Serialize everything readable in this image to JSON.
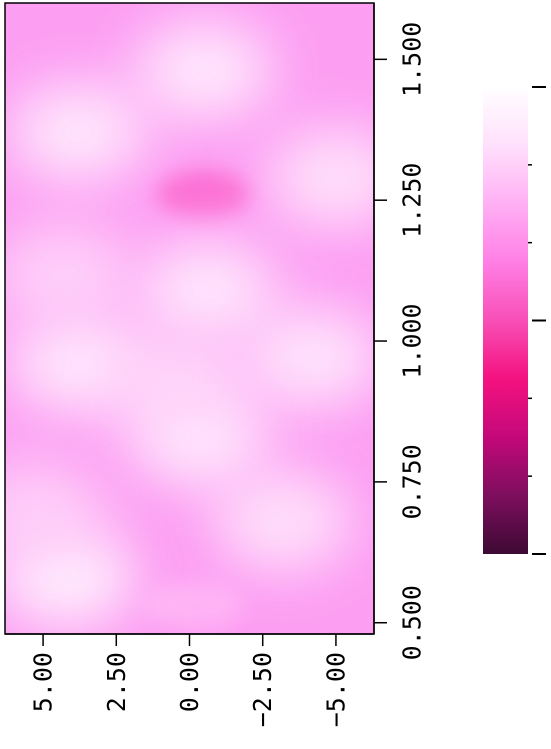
{
  "chart_data": {
    "type": "heatmap",
    "title": "",
    "xlabel": "",
    "ylabel": "",
    "orientation": "rotated-90",
    "x_axis": {
      "range": [
        0.48,
        1.6
      ],
      "ticks": [
        0.5,
        0.75,
        1.0,
        1.25,
        1.5
      ],
      "tick_labels": [
        "0.500",
        "0.750",
        "1.000",
        "1.250",
        "1.500"
      ]
    },
    "y_axis": {
      "range": [
        -6.3,
        6.3
      ],
      "ticks": [
        5.0,
        2.5,
        0.0,
        -2.5,
        -5.0
      ],
      "tick_labels": [
        "5.00",
        "2.50",
        "0.00",
        "−2.50",
        "−5.00"
      ]
    },
    "colorbar": {
      "colors": [
        "#3d0a33",
        "#7d0e5e",
        "#c4087a",
        "#f4127f",
        "#f84fb7",
        "#ff7fe5",
        "#ffb0f4",
        "#ffe0fc",
        "#ffffff"
      ],
      "major_ticks": 3,
      "minor_ticks": 2,
      "tick_labels": []
    },
    "grid": false,
    "field_description_points": [
      {
        "x": 1.26,
        "y": -0.5,
        "level": 0.58
      },
      {
        "x": 0.53,
        "y": -0.2,
        "level": 0.76
      },
      {
        "x": 1.37,
        "y": 3.8,
        "level": 0.95
      },
      {
        "x": 1.48,
        "y": -0.5,
        "level": 0.95
      },
      {
        "x": 1.09,
        "y": -0.6,
        "level": 0.95
      },
      {
        "x": 0.96,
        "y": 3.8,
        "level": 0.95
      },
      {
        "x": 0.97,
        "y": -4.2,
        "level": 0.94
      },
      {
        "x": 0.83,
        "y": -0.3,
        "level": 0.95
      },
      {
        "x": 0.58,
        "y": 4.2,
        "level": 0.98
      },
      {
        "x": 0.68,
        "y": -3.2,
        "level": 0.92
      },
      {
        "x": 1.29,
        "y": -5.0,
        "level": 0.92
      },
      {
        "x": 1.12,
        "y": 4.3,
        "level": 0.86
      },
      {
        "x": 0.7,
        "y": 5.3,
        "level": 0.85
      },
      {
        "x": 0.93,
        "y": 0.4,
        "level": 0.86
      }
    ]
  }
}
